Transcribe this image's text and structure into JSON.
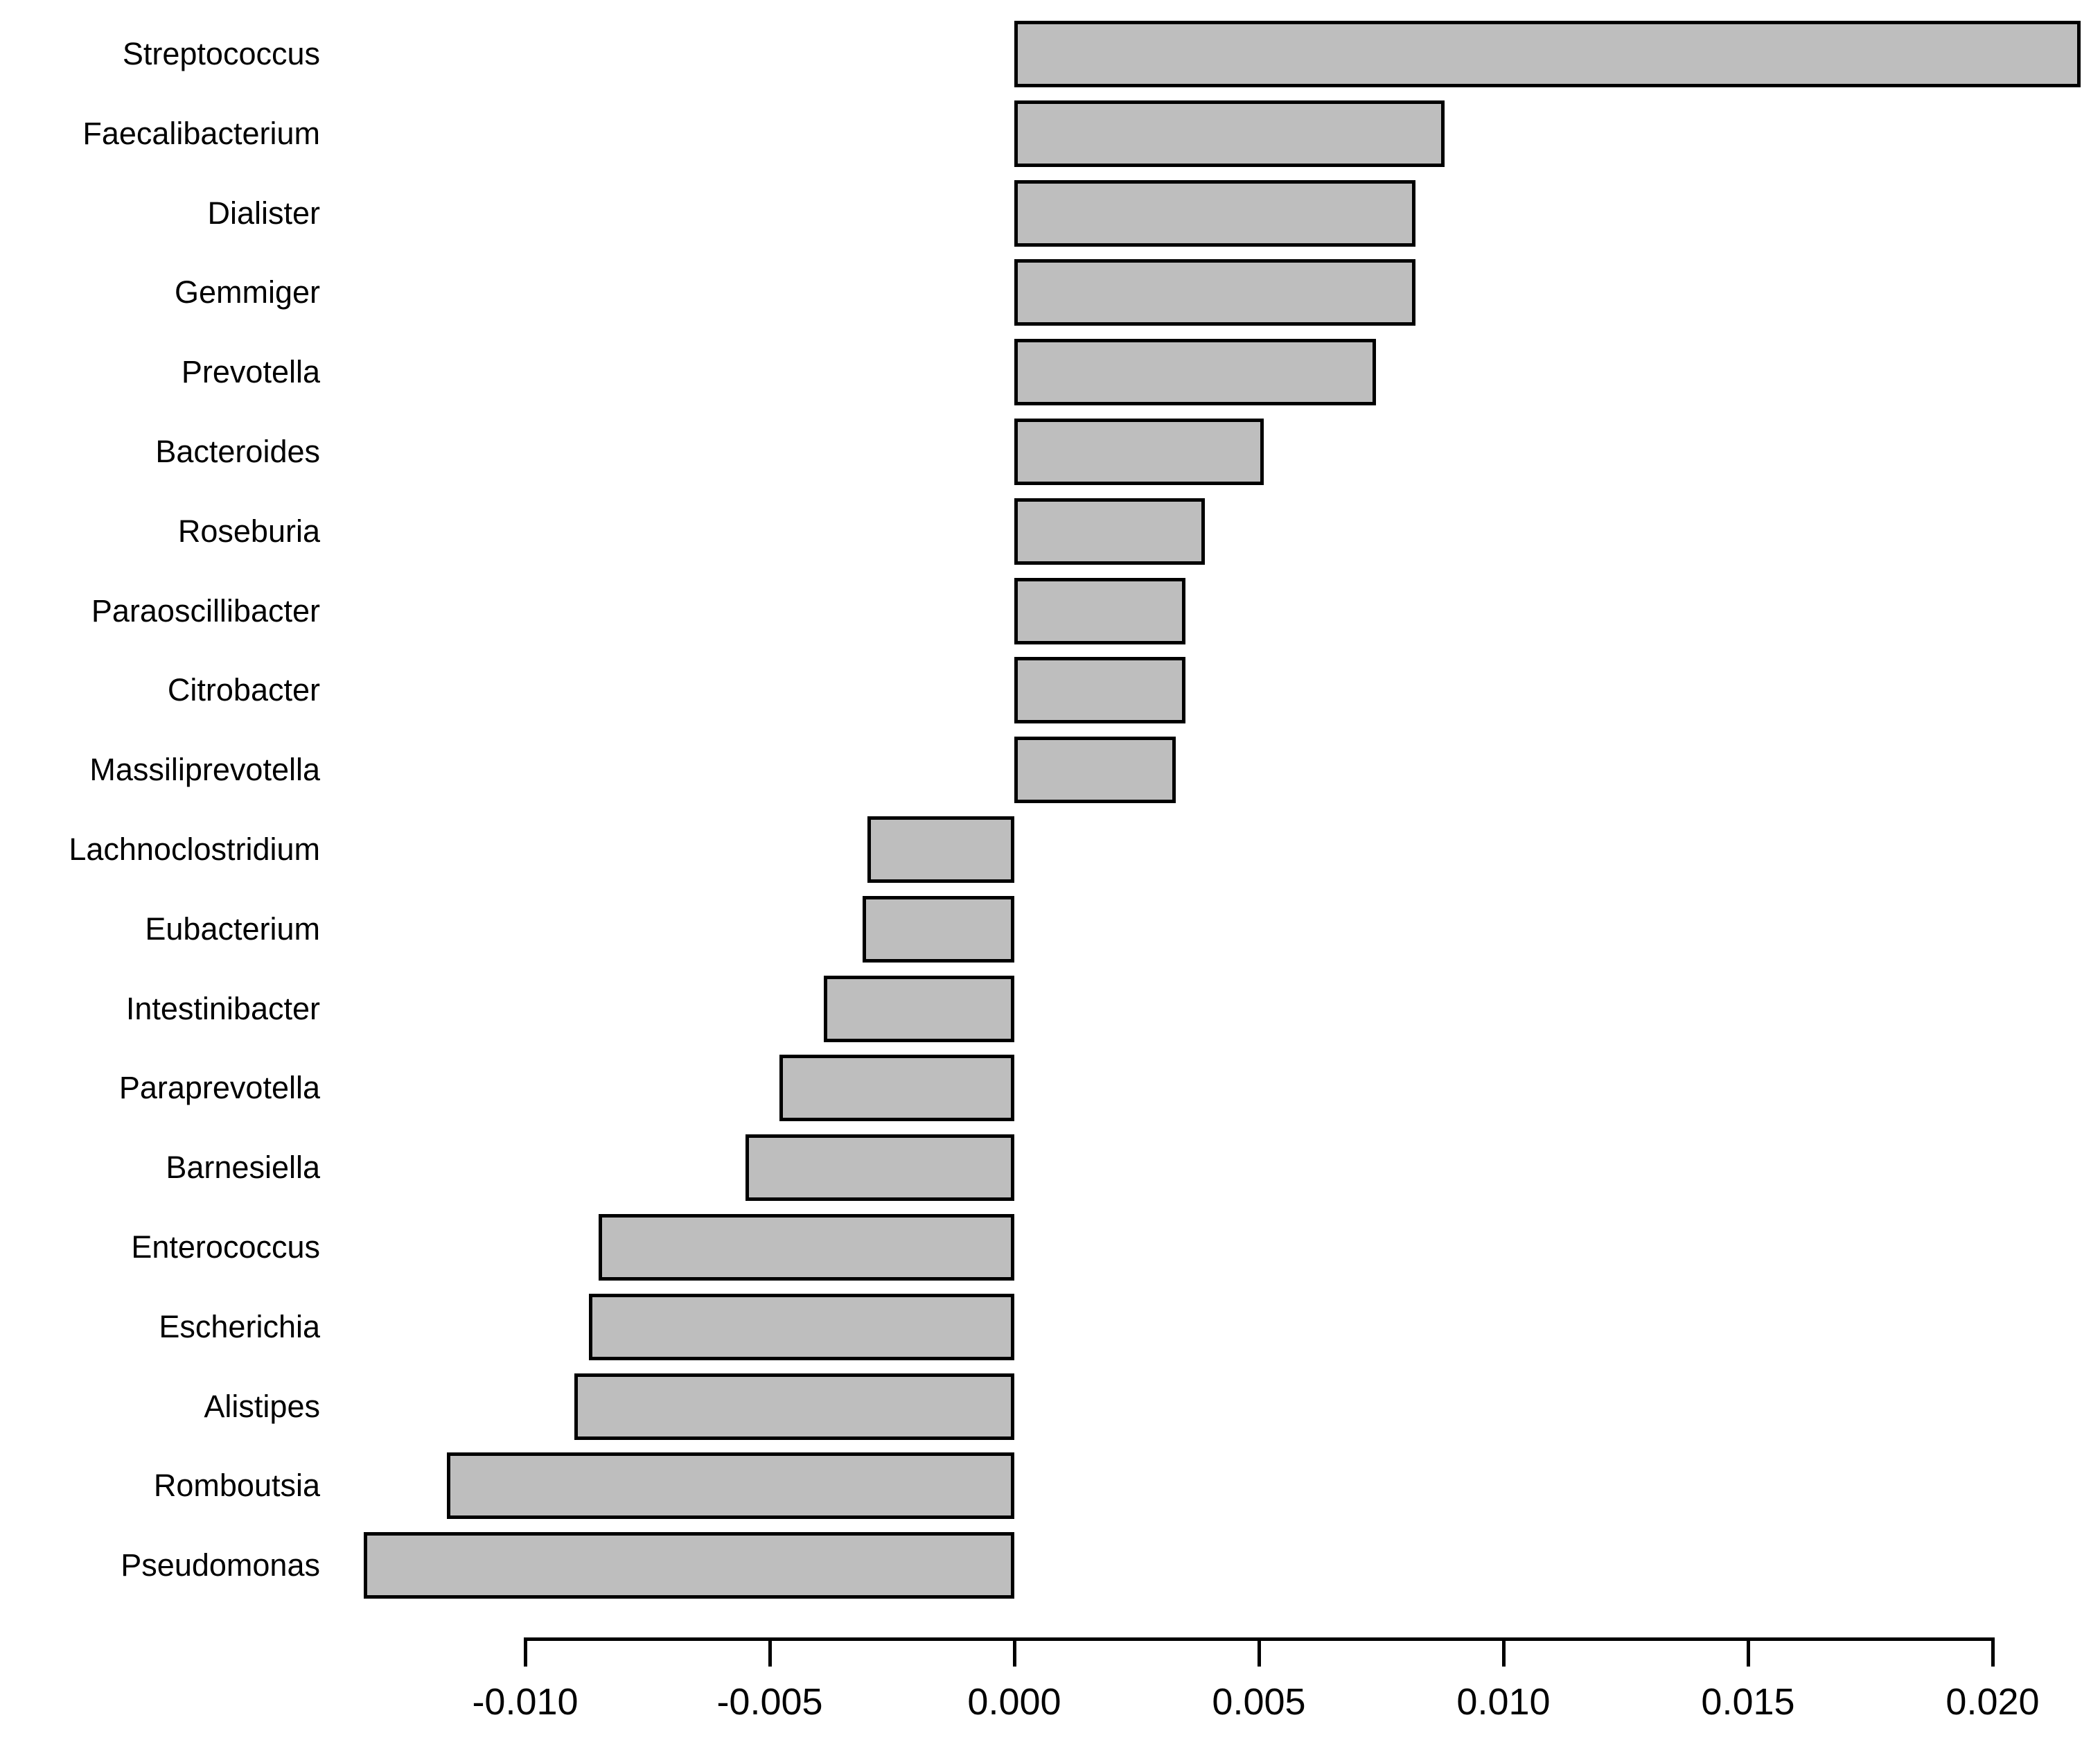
{
  "chart_data": {
    "type": "bar",
    "orientation": "horizontal",
    "title": "",
    "subtitle": "",
    "xlabel": "",
    "ylabel": "",
    "grid": false,
    "legend": null,
    "background_color": "#FFFFFF",
    "bar_fill_color": "#BEBEBE",
    "bar_border_color": "#000000",
    "axis_color": "#000000",
    "text_color": "#000000",
    "categories": [
      "Streptococcus",
      "Faecalibacterium",
      "Dialister",
      "Gemmiger",
      "Prevotella",
      "Bacteroides",
      "Roseburia",
      "Paraoscillibacter",
      "Citrobacter",
      "Massiliprevotella",
      "Lachnoclostridium",
      "Eubacterium",
      "Intestinibacter",
      "Paraprevotella",
      "Barnesiella",
      "Enterococcus",
      "Escherichia",
      "Alistipes",
      "Romboutsia",
      "Pseudomonas"
    ],
    "values": [
      0.0218,
      0.0088,
      0.0082,
      0.0082,
      0.0074,
      0.0051,
      0.0039,
      0.0035,
      0.0035,
      0.0033,
      -0.003,
      -0.0031,
      -0.0039,
      -0.0048,
      -0.0055,
      -0.0085,
      -0.0087,
      -0.009,
      -0.0116,
      -0.0133
    ],
    "x_ticks": [
      -0.01,
      -0.005,
      0.0,
      0.005,
      0.01,
      0.015,
      0.02
    ],
    "x_tick_labels": [
      "-0.010",
      "-0.005",
      "0.000",
      "0.005",
      "0.010",
      "0.015",
      "0.020"
    ],
    "x_axis_range": [
      -0.01,
      0.02
    ]
  }
}
